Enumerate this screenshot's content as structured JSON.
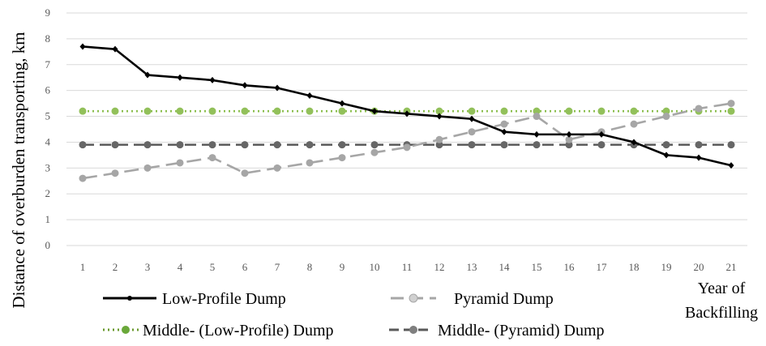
{
  "chart_data": {
    "type": "line",
    "title": "",
    "xlabel": "Year of Backfilling",
    "xlabel_lines": [
      "Year of",
      "Backfilling"
    ],
    "ylabel": "Distance of overburden transporting, km",
    "ylim": [
      0,
      9
    ],
    "yticks": [
      "0",
      "1",
      "2",
      "3",
      "4",
      "5",
      "6",
      "7",
      "8",
      "9"
    ],
    "categories": [
      "1",
      "2",
      "3",
      "4",
      "5",
      "6",
      "7",
      "8",
      "9",
      "10",
      "11",
      "12",
      "13",
      "14",
      "15",
      "16",
      "17",
      "18",
      "19",
      "20",
      "21"
    ],
    "grid": true,
    "legend_position": "bottom",
    "series": [
      {
        "name": "Low-Profile Dump",
        "color": "#000000",
        "style": "solid",
        "values": [
          7.7,
          7.6,
          6.6,
          6.5,
          6.4,
          6.2,
          6.1,
          5.8,
          5.5,
          5.2,
          5.1,
          5.0,
          4.9,
          4.4,
          4.3,
          4.3,
          4.3,
          4.0,
          3.5,
          3.4,
          3.1
        ]
      },
      {
        "name": "Pyramid Dump",
        "color": "#a6a6a6",
        "style": "longdash",
        "values": [
          2.6,
          2.8,
          3.0,
          3.2,
          3.4,
          2.8,
          3.0,
          3.2,
          3.4,
          3.6,
          3.8,
          4.1,
          4.4,
          4.7,
          5.0,
          4.1,
          4.4,
          4.7,
          5.0,
          5.3,
          5.5
        ]
      },
      {
        "name": "Middle- (Low-Profile) Dump",
        "color": "#8cbf4f",
        "style": "dotted",
        "values": [
          5.2,
          5.2,
          5.2,
          5.2,
          5.2,
          5.2,
          5.2,
          5.2,
          5.2,
          5.2,
          5.2,
          5.2,
          5.2,
          5.2,
          5.2,
          5.2,
          5.2,
          5.2,
          5.2,
          5.2,
          5.2
        ]
      },
      {
        "name": "Middle- (Pyramid) Dump",
        "color": "#595959",
        "style": "dash",
        "values": [
          3.9,
          3.9,
          3.9,
          3.9,
          3.9,
          3.9,
          3.9,
          3.9,
          3.9,
          3.9,
          3.9,
          3.9,
          3.9,
          3.9,
          3.9,
          3.9,
          3.9,
          3.9,
          3.9,
          3.9,
          3.9
        ]
      }
    ]
  }
}
